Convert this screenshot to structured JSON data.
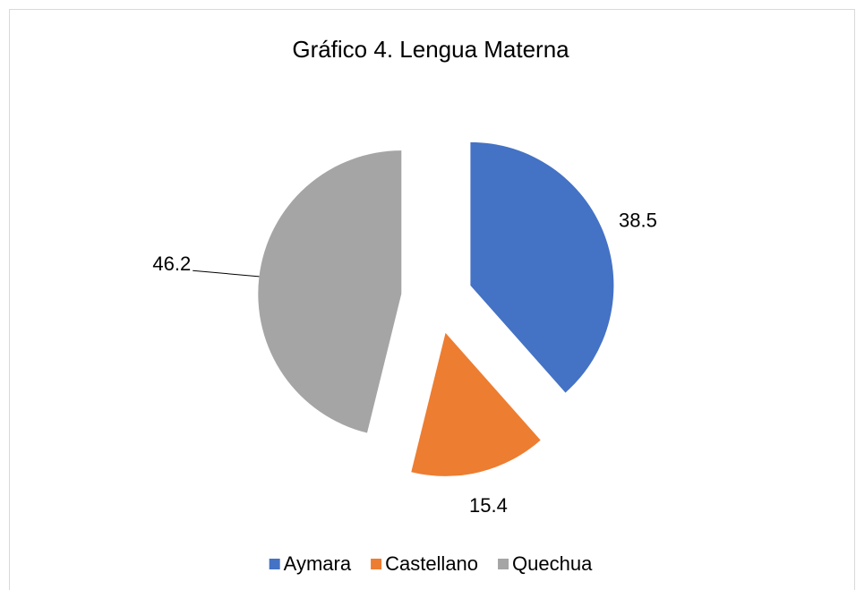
{
  "chart_data": {
    "type": "pie",
    "title": "Gráfico 4. Lengua Materna",
    "categories": [
      "Aymara",
      "Castellano",
      "Quechua"
    ],
    "values": [
      38.5,
      15.4,
      46.2
    ],
    "colors": [
      "#4472c4",
      "#ed7d31",
      "#a5a5a5"
    ],
    "legend": "bottom"
  }
}
